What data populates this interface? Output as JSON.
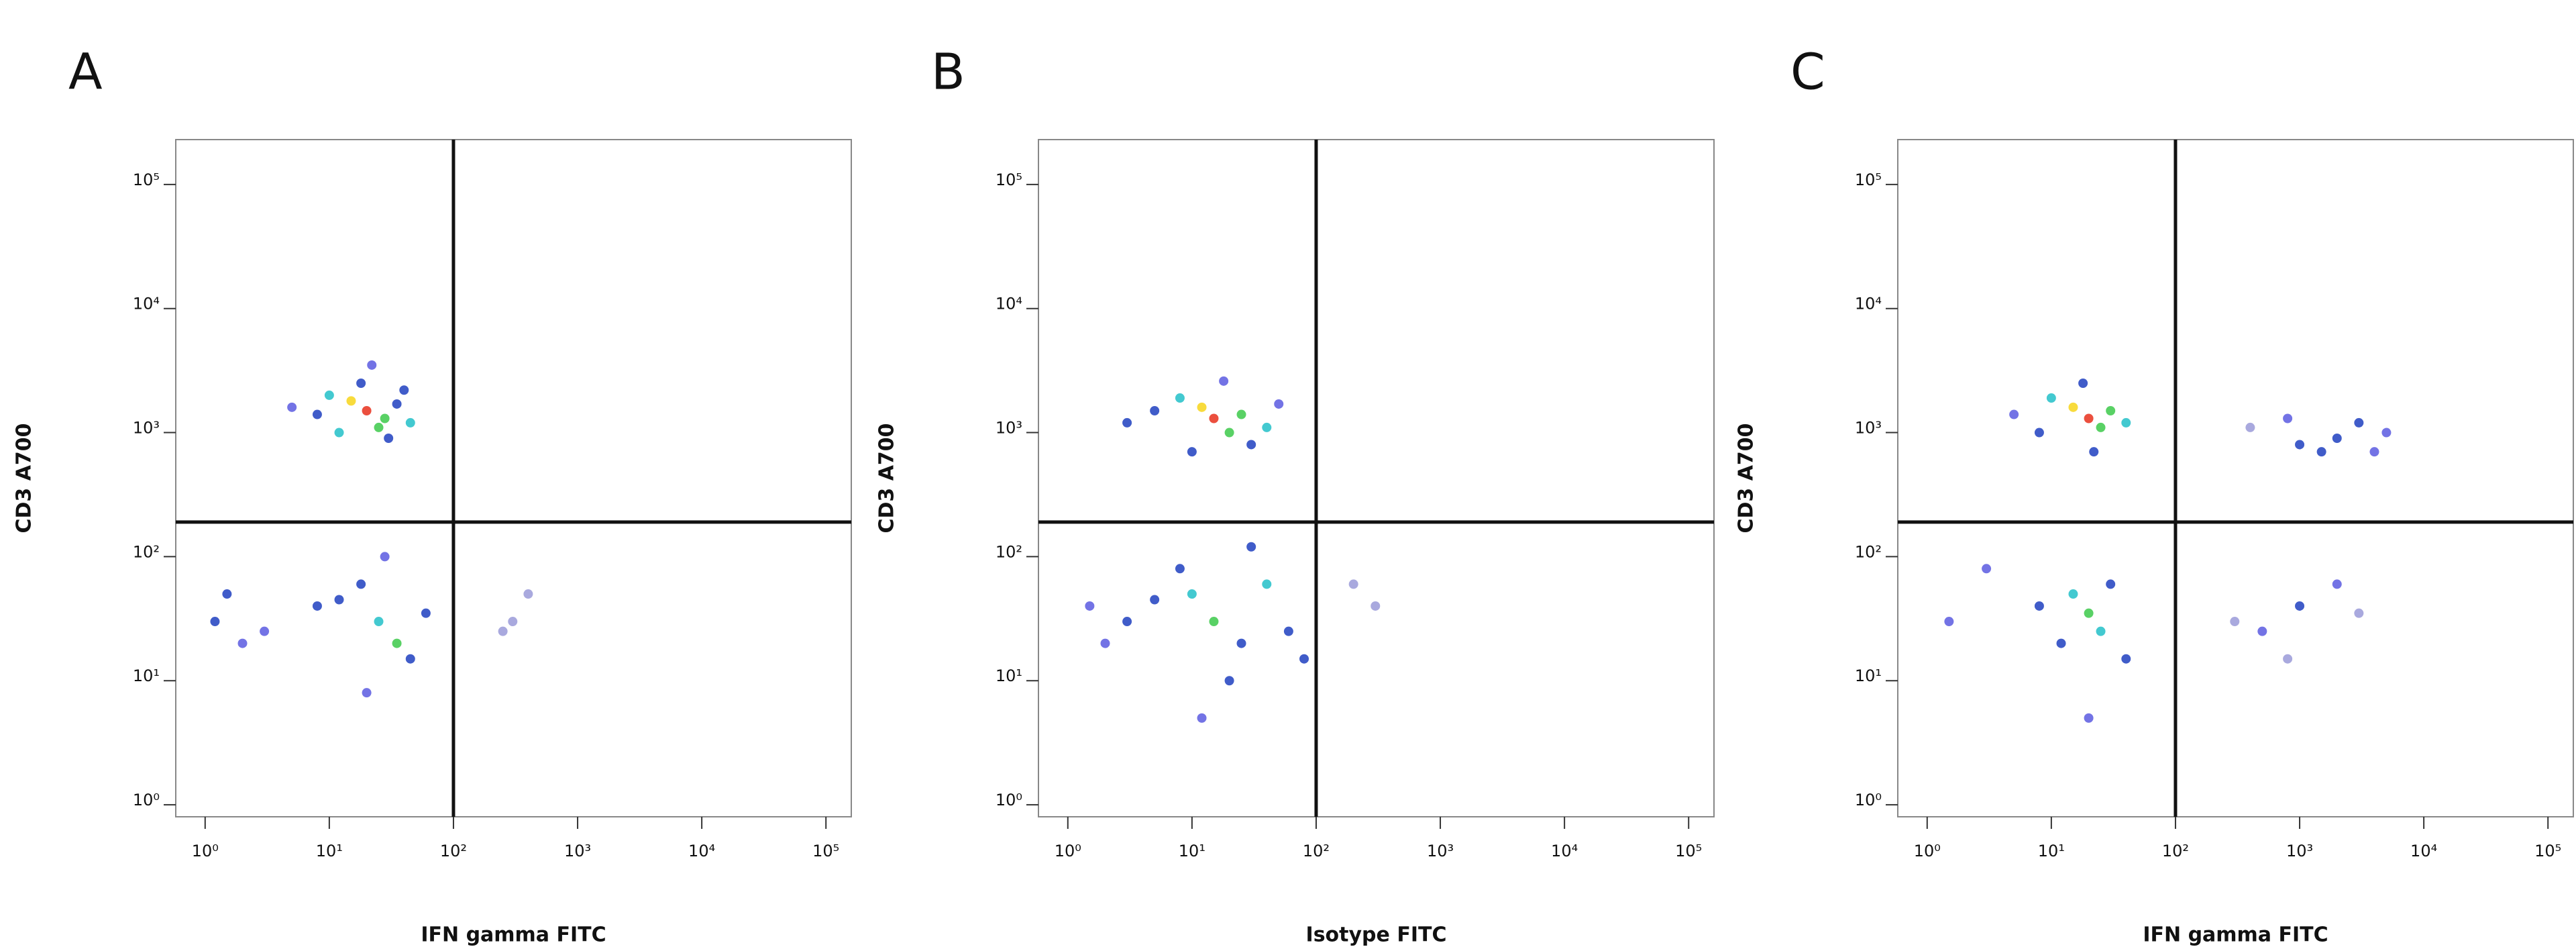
{
  "chart_data": [
    {
      "type": "scatter",
      "label": "A",
      "xlabel": "IFN gamma FITC",
      "ylabel": "CD3 A700",
      "log_x": true,
      "log_y": true,
      "xlim": [
        0.58,
        160000
      ],
      "ylim": [
        0.8,
        230000
      ],
      "xticks": [
        {
          "value": 1,
          "label": "10⁰"
        },
        {
          "value": 10,
          "label": "10¹"
        },
        {
          "value": 100,
          "label": "10²"
        },
        {
          "value": 1000,
          "label": "10³"
        },
        {
          "value": 10000,
          "label": "10⁴"
        },
        {
          "value": 100000,
          "label": "10⁵"
        }
      ],
      "yticks": [
        {
          "value": 1,
          "label": "10⁰"
        },
        {
          "value": 10,
          "label": "10¹"
        },
        {
          "value": 100,
          "label": "10²"
        },
        {
          "value": 1000,
          "label": "10³"
        },
        {
          "value": 10000,
          "label": "10⁴"
        },
        {
          "value": 100000,
          "label": "10⁵"
        }
      ],
      "gate_x": 100,
      "gate_y": 190,
      "x": [
        20,
        15,
        28,
        10,
        35,
        25,
        8,
        45,
        18,
        30,
        5,
        12,
        40,
        22,
        25,
        18,
        35,
        12,
        45,
        28,
        60,
        20,
        8,
        1.2,
        2,
        1.5,
        3,
        400,
        300,
        250
      ],
      "values": [
        1500,
        1800,
        1300,
        2000,
        1700,
        1100,
        1400,
        1200,
        2500,
        900,
        1600,
        1000,
        2200,
        3500,
        30,
        60,
        20,
        45,
        15,
        100,
        35,
        8,
        40,
        30,
        20,
        50,
        25,
        50,
        30,
        25
      ],
      "colors": [
        "#e8301c",
        "#f7d51a",
        "#3cc94a",
        "#22c0c8",
        "#1e3fbf",
        "#3cc94a",
        "#1e3fbf",
        "#22c0c8",
        "#1e3fbf",
        "#1e3fbf",
        "#5a5ae0",
        "#22c0c8",
        "#1e3fbf",
        "#5a5ae0",
        "#22c0c8",
        "#1e3fbf",
        "#3cc94a",
        "#1e3fbf",
        "#1e3fbf",
        "#5a5ae0",
        "#1e3fbf",
        "#5a5ae0",
        "#1e3fbf",
        "#1e3fbf",
        "#5a5ae0",
        "#1e3fbf",
        "#5a5ae0",
        "#9a9ad8",
        "#9a9ad8",
        "#9a9ad8"
      ]
    },
    {
      "type": "scatter",
      "label": "B",
      "xlabel": "Isotype FITC",
      "ylabel": "CD3 A700",
      "log_x": true,
      "log_y": true,
      "xlim": [
        0.58,
        160000
      ],
      "ylim": [
        0.8,
        230000
      ],
      "xticks": [
        {
          "value": 1,
          "label": "10⁰"
        },
        {
          "value": 10,
          "label": "10¹"
        },
        {
          "value": 100,
          "label": "10²"
        },
        {
          "value": 1000,
          "label": "10³"
        },
        {
          "value": 10000,
          "label": "10⁴"
        },
        {
          "value": 100000,
          "label": "10⁵"
        }
      ],
      "yticks": [
        {
          "value": 1,
          "label": "10⁰"
        },
        {
          "value": 10,
          "label": "10¹"
        },
        {
          "value": 100,
          "label": "10²"
        },
        {
          "value": 1000,
          "label": "10³"
        },
        {
          "value": 10000,
          "label": "10⁴"
        },
        {
          "value": 100000,
          "label": "10⁵"
        }
      ],
      "gate_x": 100,
      "gate_y": 190,
      "x": [
        15,
        12,
        20,
        8,
        25,
        30,
        5,
        40,
        18,
        3,
        10,
        50,
        15,
        10,
        25,
        5,
        40,
        3,
        60,
        20,
        8,
        2,
        30,
        1.5,
        200,
        300,
        12,
        80
      ],
      "values": [
        1300,
        1600,
        1000,
        1900,
        1400,
        800,
        1500,
        1100,
        2600,
        1200,
        700,
        1700,
        30,
        50,
        20,
        45,
        60,
        30,
        25,
        10,
        80,
        20,
        120,
        40,
        60,
        40,
        5,
        15
      ],
      "colors": [
        "#e8301c",
        "#f7d51a",
        "#3cc94a",
        "#22c0c8",
        "#3cc94a",
        "#1e3fbf",
        "#1e3fbf",
        "#22c0c8",
        "#5a5ae0",
        "#1e3fbf",
        "#1e3fbf",
        "#5a5ae0",
        "#3cc94a",
        "#22c0c8",
        "#1e3fbf",
        "#1e3fbf",
        "#22c0c8",
        "#1e3fbf",
        "#1e3fbf",
        "#1e3fbf",
        "#1e3fbf",
        "#5a5ae0",
        "#1e3fbf",
        "#5a5ae0",
        "#9a9ad8",
        "#9a9ad8",
        "#5a5ae0",
        "#1e3fbf"
      ]
    },
    {
      "type": "scatter",
      "label": "C",
      "xlabel": "IFN gamma FITC",
      "ylabel": "CD3 A700",
      "log_x": true,
      "log_y": true,
      "xlim": [
        0.58,
        160000
      ],
      "ylim": [
        0.8,
        230000
      ],
      "xticks": [
        {
          "value": 1,
          "label": "10⁰"
        },
        {
          "value": 10,
          "label": "10¹"
        },
        {
          "value": 100,
          "label": "10²"
        },
        {
          "value": 1000,
          "label": "10³"
        },
        {
          "value": 10000,
          "label": "10⁴"
        },
        {
          "value": 100000,
          "label": "10⁵"
        }
      ],
      "yticks": [
        {
          "value": 1,
          "label": "10⁰"
        },
        {
          "value": 10,
          "label": "10¹"
        },
        {
          "value": 100,
          "label": "10²"
        },
        {
          "value": 1000,
          "label": "10³"
        },
        {
          "value": 10000,
          "label": "10⁴"
        },
        {
          "value": 100000,
          "label": "10⁵"
        }
      ],
      "gate_x": 100,
      "gate_y": 190,
      "x": [
        20,
        15,
        25,
        10,
        30,
        18,
        8,
        40,
        22,
        5,
        2000,
        3000,
        1000,
        5000,
        800,
        1500,
        400,
        4000,
        20,
        15,
        25,
        12,
        30,
        8,
        40,
        3,
        1.5,
        20,
        1000,
        500,
        2000,
        300,
        800,
        3000
      ],
      "values": [
        1300,
        1600,
        1100,
        1900,
        1500,
        2500,
        1000,
        1200,
        700,
        1400,
        900,
        1200,
        800,
        1000,
        1300,
        700,
        1100,
        700,
        35,
        50,
        25,
        20,
        60,
        40,
        15,
        80,
        30,
        5,
        40,
        25,
        60,
        30,
        15,
        35
      ],
      "colors": [
        "#e8301c",
        "#f7d51a",
        "#3cc94a",
        "#22c0c8",
        "#3cc94a",
        "#1e3fbf",
        "#1e3fbf",
        "#22c0c8",
        "#1e3fbf",
        "#5a5ae0",
        "#1e3fbf",
        "#1e3fbf",
        "#1e3fbf",
        "#5a5ae0",
        "#5a5ae0",
        "#1e3fbf",
        "#9a9ad8",
        "#5a5ae0",
        "#3cc94a",
        "#22c0c8",
        "#22c0c8",
        "#1e3fbf",
        "#1e3fbf",
        "#1e3fbf",
        "#1e3fbf",
        "#5a5ae0",
        "#5a5ae0",
        "#5a5ae0",
        "#1e3fbf",
        "#5a5ae0",
        "#5a5ae0",
        "#9a9ad8",
        "#9a9ad8",
        "#9a9ad8"
      ]
    }
  ]
}
